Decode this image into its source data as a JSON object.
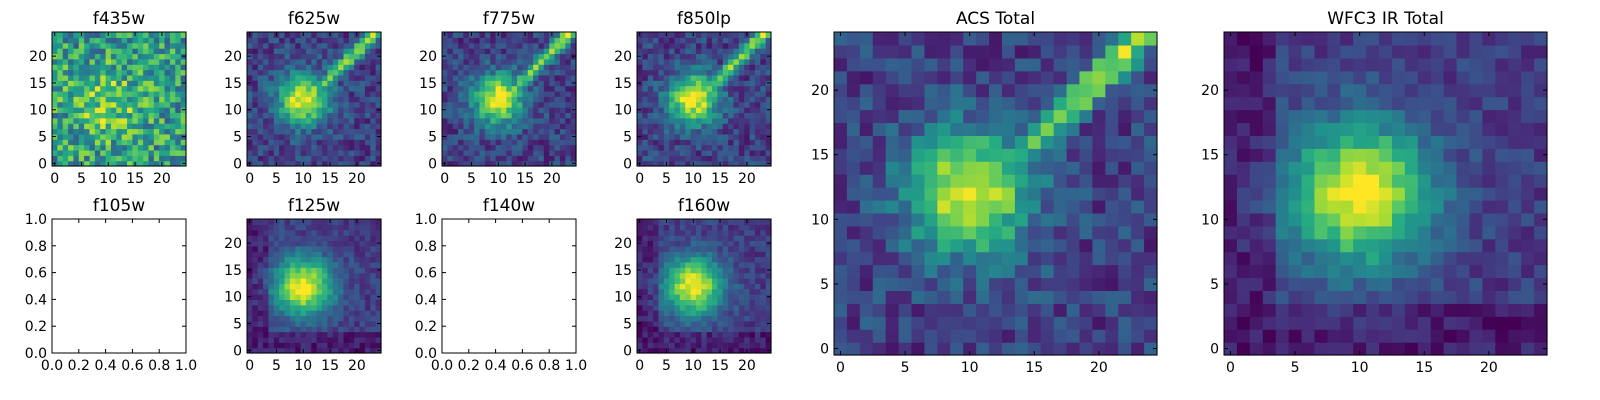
{
  "chart_data": [
    {
      "type": "heatmap",
      "title": "f435w",
      "xlim": [
        -0.5,
        24.5
      ],
      "ylim": [
        -0.5,
        24.5
      ],
      "xticks": [
        0,
        5,
        10,
        15,
        20
      ],
      "yticks": [
        0,
        5,
        10,
        15,
        20
      ],
      "colormap": "viridis",
      "has_image": true,
      "image_pattern": "noisy",
      "peak": [
        10,
        11
      ],
      "streak": false
    },
    {
      "type": "heatmap",
      "title": "f625w",
      "xlim": [
        -0.5,
        24.5
      ],
      "ylim": [
        -0.5,
        24.5
      ],
      "xticks": [
        0,
        5,
        10,
        15,
        20
      ],
      "yticks": [
        0,
        5,
        10,
        15,
        20
      ],
      "colormap": "viridis",
      "has_image": true,
      "image_pattern": "blob_with_diagonal_streak",
      "peak": [
        10,
        12
      ],
      "streak": true
    },
    {
      "type": "heatmap",
      "title": "f775w",
      "xlim": [
        -0.5,
        24.5
      ],
      "ylim": [
        -0.5,
        24.5
      ],
      "xticks": [
        0,
        5,
        10,
        15,
        20
      ],
      "yticks": [
        0,
        5,
        10,
        15,
        20
      ],
      "colormap": "viridis",
      "has_image": true,
      "image_pattern": "blob_with_diagonal_streak",
      "peak": [
        10,
        12
      ],
      "streak": true
    },
    {
      "type": "heatmap",
      "title": "f850lp",
      "xlim": [
        -0.5,
        24.5
      ],
      "ylim": [
        -0.5,
        24.5
      ],
      "xticks": [
        0,
        5,
        10,
        15,
        20
      ],
      "yticks": [
        0,
        5,
        10,
        15,
        20
      ],
      "colormap": "viridis",
      "has_image": true,
      "image_pattern": "blob_with_diagonal_streak",
      "peak": [
        10,
        12
      ],
      "streak": true
    },
    {
      "type": "heatmap",
      "title": "f105w",
      "xlim": [
        0.0,
        1.0
      ],
      "ylim": [
        0.0,
        1.0
      ],
      "xticks": [
        "0.0",
        "0.2",
        "0.4",
        "0.6",
        "0.8",
        "1.0"
      ],
      "yticks": [
        "0.0",
        "0.2",
        "0.4",
        "0.6",
        "0.8",
        "1.0"
      ],
      "colormap": "viridis",
      "has_image": false
    },
    {
      "type": "heatmap",
      "title": "f125w",
      "xlim": [
        -0.5,
        24.5
      ],
      "ylim": [
        -0.5,
        24.5
      ],
      "xticks": [
        0,
        5,
        10,
        15,
        20
      ],
      "yticks": [
        0,
        5,
        10,
        15,
        20
      ],
      "colormap": "viridis",
      "has_image": true,
      "image_pattern": "round_blob",
      "peak": [
        10,
        12
      ],
      "streak": false
    },
    {
      "type": "heatmap",
      "title": "f140w",
      "xlim": [
        0.0,
        1.0
      ],
      "ylim": [
        0.0,
        1.0
      ],
      "xticks": [
        "0.0",
        "0.2",
        "0.4",
        "0.6",
        "0.8",
        "1.0"
      ],
      "yticks": [
        "0.0",
        "0.2",
        "0.4",
        "0.6",
        "0.8",
        "1.0"
      ],
      "colormap": "viridis",
      "has_image": false
    },
    {
      "type": "heatmap",
      "title": "f160w",
      "xlim": [
        -0.5,
        24.5
      ],
      "ylim": [
        -0.5,
        24.5
      ],
      "xticks": [
        0,
        5,
        10,
        15,
        20
      ],
      "yticks": [
        0,
        5,
        10,
        15,
        20
      ],
      "colormap": "viridis",
      "has_image": true,
      "image_pattern": "round_blob",
      "peak": [
        10,
        12
      ],
      "streak": false
    },
    {
      "type": "heatmap",
      "title": "ACS Total",
      "xlim": [
        -0.5,
        24.5
      ],
      "ylim": [
        -0.5,
        24.5
      ],
      "xticks": [
        0,
        5,
        10,
        15,
        20
      ],
      "yticks": [
        0,
        5,
        10,
        15,
        20
      ],
      "colormap": "viridis",
      "has_image": true,
      "image_pattern": "blob_with_diagonal_streak",
      "peak": [
        10,
        12
      ],
      "streak": true
    },
    {
      "type": "heatmap",
      "title": "WFC3 IR Total",
      "xlim": [
        -0.5,
        24.5
      ],
      "ylim": [
        -0.5,
        24.5
      ],
      "xticks": [
        0,
        5,
        10,
        15,
        20
      ],
      "yticks": [
        0,
        5,
        10,
        15,
        20
      ],
      "colormap": "viridis",
      "has_image": true,
      "image_pattern": "round_blob",
      "peak": [
        10,
        12
      ],
      "streak": false
    }
  ]
}
